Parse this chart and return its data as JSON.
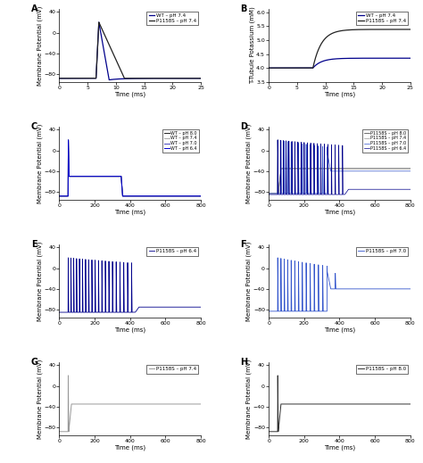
{
  "panel_labels": [
    "A",
    "B",
    "C",
    "D",
    "E",
    "F",
    "G",
    "H"
  ],
  "col_wt_64": "#0000cd",
  "col_wt_70": "#4444bb",
  "col_wt_74": "#aaaaaa",
  "col_wt_80": "#222222",
  "col_p_64": "#00008b",
  "col_p_70": "#3355cc",
  "col_p_74": "#999999",
  "col_p_80": "#333333",
  "figsize": [
    4.74,
    5.19
  ],
  "dpi": 100
}
